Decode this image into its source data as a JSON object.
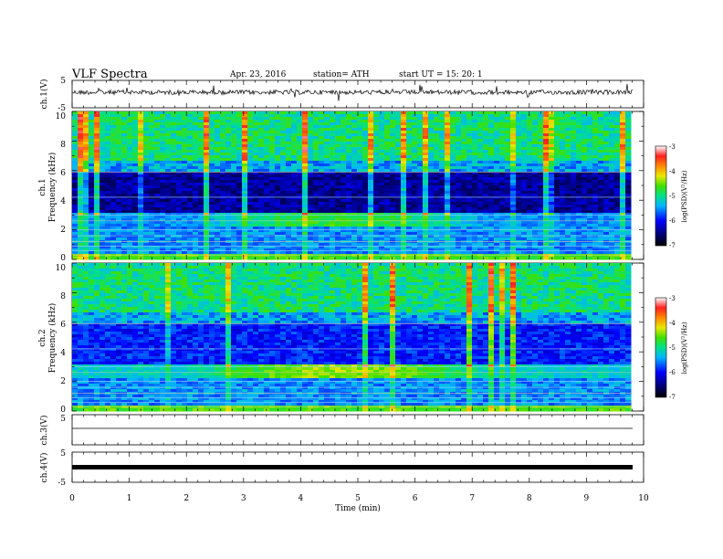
{
  "header": {
    "title": "VLF  Spectra",
    "date": "Apr. 23, 2016",
    "station": "station= ATH",
    "start": "start  UT  =    15: 20: 1"
  },
  "chart_data": [
    {
      "type": "line",
      "name": "ch1-waveform",
      "ylabel": "ch.1(V)",
      "yticks": [
        "5",
        "-5"
      ],
      "ylim": [
        -5,
        5
      ],
      "xlim": [
        0,
        10
      ]
    },
    {
      "type": "heatmap",
      "name": "ch1-spectrogram",
      "ylabel": "ch.1\nFrequency  (kHz)",
      "ylabel_lines": [
        "ch.1",
        "Frequency  (kHz)"
      ],
      "ylim": [
        0,
        10
      ],
      "yticks": [
        "0",
        "2",
        "4",
        "6",
        "8",
        "10"
      ],
      "xlim": [
        0,
        9.8
      ],
      "colorbar": {
        "label": "log(PSD)(V²/Hz)",
        "ticks": [
          "-3",
          "-4",
          "-5",
          "-6",
          "-7"
        ],
        "range": [
          -7,
          -3
        ]
      }
    },
    {
      "type": "heatmap",
      "name": "ch2-spectrogram",
      "ylabel_lines": [
        "ch.2",
        "Frequency  (kHz)"
      ],
      "ylim": [
        0,
        10
      ],
      "yticks": [
        "0",
        "2",
        "4",
        "6",
        "8",
        "10"
      ],
      "xlim": [
        0,
        9.8
      ],
      "colorbar": {
        "label": "log(PSD)(V²/Hz)",
        "ticks": [
          "-3",
          "-4",
          "-5",
          "-6",
          "-7"
        ],
        "range": [
          -7,
          -3
        ]
      }
    },
    {
      "type": "line",
      "name": "ch3-waveform",
      "ylabel": "ch.3(V)",
      "yticks": [
        "5"
      ],
      "ylim": [
        -5,
        5
      ]
    },
    {
      "type": "line",
      "name": "ch4-waveform",
      "ylabel": "ch.4(V)",
      "yticks": [
        "5",
        "-5"
      ],
      "ylim": [
        -5,
        5
      ]
    }
  ],
  "xaxis": {
    "label": "Time  (min)",
    "ticks": [
      "0",
      "1",
      "2",
      "3",
      "4",
      "5",
      "6",
      "7",
      "8",
      "9",
      "10"
    ],
    "range": [
      0,
      10
    ]
  }
}
